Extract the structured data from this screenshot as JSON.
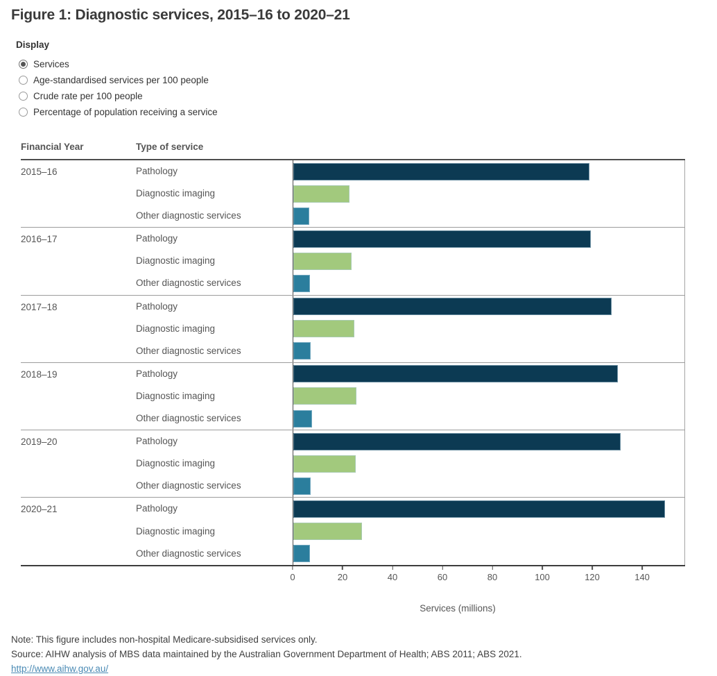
{
  "figure": {
    "title": "Figure 1: Diagnostic services, 2015–16 to 2020–21"
  },
  "display_options": {
    "label": "Display",
    "options": [
      {
        "label": "Services",
        "selected": true
      },
      {
        "label": "Age-standardised services per 100 people",
        "selected": false
      },
      {
        "label": "Crude rate per 100 people",
        "selected": false
      },
      {
        "label": "Percentage of population receiving a service",
        "selected": false
      }
    ]
  },
  "table": {
    "col1_header": "Financial Year",
    "col2_header": "Type of service"
  },
  "chart_data": {
    "type": "bar",
    "orientation": "horizontal",
    "title": "",
    "xlabel": "Services (millions)",
    "ylabel": "",
    "xlim": [
      0,
      157.2
    ],
    "x_ticks": [
      0,
      20,
      40,
      60,
      80,
      100,
      120,
      140
    ],
    "grid": false,
    "legend": "none",
    "categories": [
      "2015–16",
      "2016–17",
      "2017–18",
      "2018–19",
      "2019–20",
      "2020–21"
    ],
    "series": [
      {
        "name": "Pathology",
        "color": "#0c3a53",
        "values": [
          119,
          119.5,
          128,
          130.5,
          131.5,
          149.5
        ]
      },
      {
        "name": "Diagnostic imaging",
        "color": "#a2c97d",
        "values": [
          22.5,
          23.5,
          24.5,
          25.5,
          25,
          27.5
        ]
      },
      {
        "name": "Other diagnostic services",
        "color": "#2b7e9d",
        "values": [
          6.3,
          6.7,
          7.0,
          7.4,
          7.0,
          6.6
        ]
      }
    ]
  },
  "notes": {
    "note": "Note: This figure includes non-hospital Medicare-subsidised services only.",
    "source": "Source: AIHW analysis of MBS data maintained by the Australian Government Department of Health; ABS 2011; ABS 2021.",
    "link": "http://www.aihw.gov.au/"
  }
}
